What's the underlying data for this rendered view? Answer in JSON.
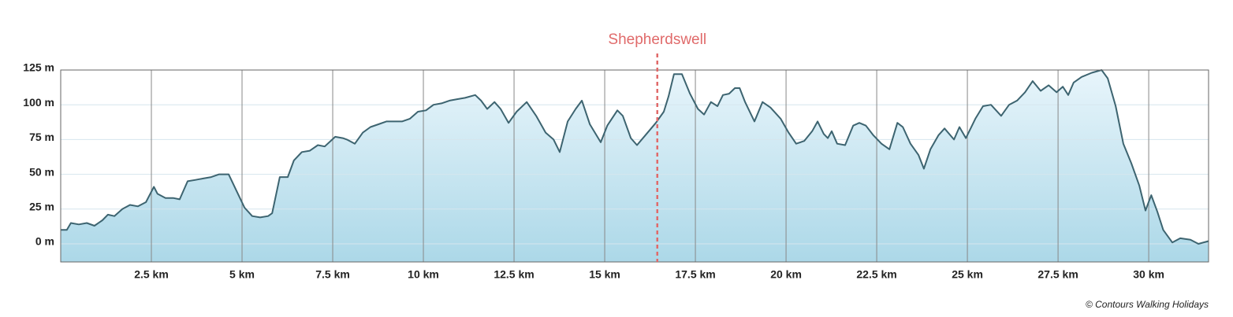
{
  "chart_data": {
    "type": "area",
    "annotation": {
      "label": "Shepherdswell",
      "x": 16.45
    },
    "credit": "© Contours Walking Holidays",
    "line_color": "#3d6470",
    "fill_top": "#e8f5fb",
    "fill_bottom": "#acd8e8",
    "annotation_color": "#e06a6a",
    "grid": true,
    "xlim": [
      0,
      31.65
    ],
    "ylim": [
      -13,
      125
    ],
    "xticks": [
      {
        "value": 2.5,
        "label": "2.5 km"
      },
      {
        "value": 5,
        "label": "5 km"
      },
      {
        "value": 7.5,
        "label": "7.5 km"
      },
      {
        "value": 10,
        "label": "10 km"
      },
      {
        "value": 12.5,
        "label": "12.5 km"
      },
      {
        "value": 15,
        "label": "15 km"
      },
      {
        "value": 17.5,
        "label": "17.5 km"
      },
      {
        "value": 20,
        "label": "20 km"
      },
      {
        "value": 22.5,
        "label": "22.5 km"
      },
      {
        "value": 25,
        "label": "25 km"
      },
      {
        "value": 27.5,
        "label": "27.5 km"
      },
      {
        "value": 30,
        "label": "30 km"
      }
    ],
    "yticks": [
      {
        "value": 0,
        "label": "0 m"
      },
      {
        "value": 25,
        "label": "25 m"
      },
      {
        "value": 50,
        "label": "50 m"
      },
      {
        "value": 75,
        "label": "75 m"
      },
      {
        "value": 100,
        "label": "100 m"
      },
      {
        "value": 125,
        "label": "125 m"
      }
    ],
    "x": [
      0,
      0.17,
      0.28,
      0.5,
      0.72,
      0.93,
      1.15,
      1.3,
      1.48,
      1.7,
      1.91,
      2.13,
      2.35,
      2.57,
      2.67,
      2.89,
      3.1,
      3.28,
      3.5,
      3.72,
      3.93,
      4.15,
      4.37,
      4.63,
      4.85,
      5.07,
      5.28,
      5.5,
      5.72,
      5.83,
      6.04,
      6.26,
      6.43,
      6.65,
      6.87,
      7.09,
      7.28,
      7.57,
      7.78,
      7.89,
      8.11,
      8.33,
      8.54,
      8.76,
      8.98,
      9.2,
      9.41,
      9.63,
      9.85,
      10.07,
      10.28,
      10.5,
      10.72,
      10.93,
      11.15,
      11.43,
      11.59,
      11.76,
      11.96,
      12.13,
      12.35,
      12.57,
      12.85,
      13.11,
      13.37,
      13.59,
      13.76,
      13.98,
      14.2,
      14.37,
      14.59,
      14.89,
      15.07,
      15.35,
      15.5,
      15.72,
      15.89,
      16.15,
      16.41,
      16.63,
      16.76,
      16.91,
      17.13,
      17.35,
      17.57,
      17.74,
      17.93,
      18.11,
      18.26,
      18.43,
      18.59,
      18.72,
      18.87,
      19.13,
      19.35,
      19.57,
      19.85,
      20.07,
      20.28,
      20.5,
      20.72,
      20.87,
      21.04,
      21.15,
      21.26,
      21.41,
      21.63,
      21.85,
      22.02,
      22.2,
      22.41,
      22.63,
      22.85,
      23.07,
      23.22,
      23.43,
      23.65,
      23.8,
      23.98,
      24.2,
      24.37,
      24.63,
      24.78,
      24.96,
      25.22,
      25.43,
      25.65,
      25.93,
      26.15,
      26.37,
      26.59,
      26.8,
      27.02,
      27.24,
      27.46,
      27.63,
      27.78,
      27.93,
      28.15,
      28.43,
      28.7,
      28.87,
      29.09,
      29.3,
      29.52,
      29.74,
      29.91,
      30.07,
      30.24,
      30.4,
      30.65,
      30.87,
      31.15,
      31.37,
      31.65
    ],
    "values": [
      10,
      10,
      15,
      14,
      15,
      13,
      17,
      21,
      20,
      25,
      28,
      27,
      30,
      41,
      36,
      33,
      33,
      32,
      45,
      46,
      47,
      48,
      50,
      50,
      38,
      26,
      20,
      19,
      20,
      22,
      48,
      48,
      60,
      66,
      67,
      71,
      70,
      77,
      76,
      75,
      72,
      80,
      84,
      86,
      88,
      88,
      88,
      90,
      95,
      96,
      100,
      101,
      103,
      104,
      105,
      107,
      103,
      97,
      102,
      97,
      87,
      95,
      102,
      92,
      80,
      75,
      66,
      88,
      97,
      103,
      86,
      73,
      85,
      96,
      92,
      76,
      71,
      79,
      87,
      95,
      106,
      122,
      122,
      108,
      97,
      93,
      102,
      99,
      107,
      108,
      112,
      112,
      102,
      88,
      102,
      98,
      90,
      80,
      72,
      74,
      81,
      88,
      79,
      76,
      81,
      72,
      71,
      85,
      87,
      85,
      78,
      72,
      68,
      87,
      84,
      72,
      64,
      54,
      68,
      78,
      83,
      75,
      84,
      76,
      90,
      99,
      100,
      92,
      100,
      103,
      109,
      117,
      110,
      114,
      109,
      113,
      107,
      116,
      120,
      123,
      125,
      119,
      99,
      72,
      58,
      42,
      24,
      35,
      23,
      10,
      1,
      4,
      3,
      0,
      2
    ]
  }
}
